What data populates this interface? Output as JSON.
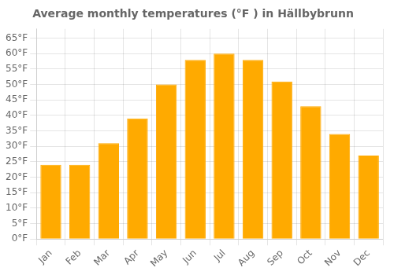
{
  "chart_data": {
    "type": "bar",
    "title": "Average monthly temperatures (°F ) in Hällbybrunn",
    "categories": [
      "Jan",
      "Feb",
      "Mar",
      "Apr",
      "May",
      "Jun",
      "Jul",
      "Aug",
      "Sep",
      "Oct",
      "Nov",
      "Dec"
    ],
    "values": [
      24,
      24,
      31,
      39,
      50,
      58,
      60,
      58,
      51,
      43,
      34,
      27
    ],
    "color": "#FFAA00",
    "ylim": [
      0,
      68
    ],
    "yticks": [
      {
        "value": 0,
        "label": "0°F"
      },
      {
        "value": 5,
        "label": "5°F"
      },
      {
        "value": 10,
        "label": "10°F"
      },
      {
        "value": 15,
        "label": "15°F"
      },
      {
        "value": 20,
        "label": "20°F"
      },
      {
        "value": 25,
        "label": "25°F"
      },
      {
        "value": 30,
        "label": "30°F"
      },
      {
        "value": 35,
        "label": "35°F"
      },
      {
        "value": 40,
        "label": "40°F"
      },
      {
        "value": 45,
        "label": "45°F"
      },
      {
        "value": 50,
        "label": "50°F"
      },
      {
        "value": 55,
        "label": "55°F"
      },
      {
        "value": 60,
        "label": "60°F"
      },
      {
        "value": 65,
        "label": "65°F"
      }
    ],
    "grid": true
  }
}
